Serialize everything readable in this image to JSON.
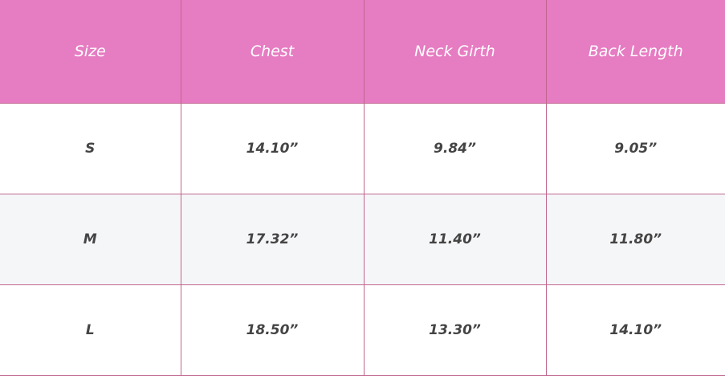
{
  "table": {
    "header": [
      "Size",
      "Chest",
      "Neck Girth",
      "Back Length"
    ],
    "rows": [
      [
        "S",
        "14.10”",
        "9.84”",
        "9.05”"
      ],
      [
        "M",
        "17.32”",
        "11.40”",
        "11.80”"
      ],
      [
        "L",
        "18.50”",
        "13.30”",
        "14.10”"
      ]
    ]
  }
}
